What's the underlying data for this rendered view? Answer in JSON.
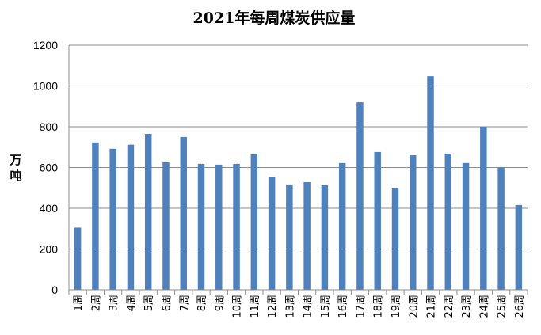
{
  "chart_data": {
    "type": "bar",
    "title": "2021年每周煤炭供应量",
    "ylabel": "万吨",
    "xlabel": "",
    "ylim": [
      0,
      1200
    ],
    "yticks": [
      0,
      200,
      400,
      600,
      800,
      1000,
      1200
    ],
    "grid": true,
    "legend": "none",
    "bar_color": "#4f81bd",
    "categories": [
      "1周",
      "2周",
      "3周",
      "4周",
      "5周",
      "6周",
      "7周",
      "8周",
      "9周",
      "10周",
      "11周",
      "12周",
      "13周",
      "14周",
      "15周",
      "16周",
      "17周",
      "18周",
      "19周",
      "20周",
      "21周",
      "22周",
      "23周",
      "24周",
      "25周",
      "26周"
    ],
    "values": [
      305,
      723,
      692,
      712,
      765,
      626,
      750,
      618,
      614,
      618,
      665,
      553,
      517,
      528,
      513,
      622,
      920,
      676,
      500,
      660,
      1048,
      668,
      622,
      800,
      600,
      416
    ]
  }
}
